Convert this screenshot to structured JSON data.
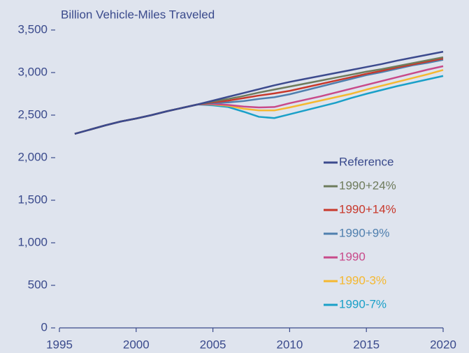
{
  "chart_data": {
    "type": "line",
    "y_axis_label": "Billion Vehicle-Miles Traveled",
    "x": [
      1996,
      1997,
      1998,
      1999,
      2000,
      2001,
      2002,
      2003,
      2004,
      2005,
      2006,
      2007,
      2008,
      2009,
      2010,
      2011,
      2012,
      2013,
      2014,
      2015,
      2016,
      2017,
      2018,
      2019,
      2020
    ],
    "series": [
      {
        "name": "Reference",
        "color": "#3c4a8e",
        "values": [
          2280,
          2330,
          2380,
          2425,
          2460,
          2500,
          2545,
          2585,
          2625,
          2670,
          2715,
          2760,
          2805,
          2850,
          2890,
          2925,
          2960,
          2995,
          3030,
          3065,
          3100,
          3140,
          3175,
          3210,
          3245
        ]
      },
      {
        "name": "1990+24%",
        "color": "#6e7b5c",
        "values": [
          2280,
          2330,
          2380,
          2425,
          2460,
          2500,
          2545,
          2585,
          2625,
          2660,
          2690,
          2725,
          2765,
          2800,
          2835,
          2870,
          2905,
          2940,
          2975,
          3010,
          3040,
          3075,
          3110,
          3145,
          3180
        ]
      },
      {
        "name": "1990+14%",
        "color": "#c8382b",
        "values": [
          2280,
          2330,
          2380,
          2425,
          2460,
          2500,
          2545,
          2585,
          2625,
          2650,
          2670,
          2700,
          2730,
          2755,
          2785,
          2825,
          2865,
          2905,
          2945,
          2985,
          3020,
          3060,
          3095,
          3130,
          3165
        ]
      },
      {
        "name": "1990+9%",
        "color": "#4f7fae",
        "values": [
          2280,
          2330,
          2380,
          2425,
          2460,
          2500,
          2545,
          2585,
          2625,
          2640,
          2650,
          2665,
          2690,
          2710,
          2745,
          2790,
          2835,
          2880,
          2925,
          2970,
          3005,
          3045,
          3085,
          3115,
          3150
        ]
      },
      {
        "name": "1990",
        "color": "#c84a8a",
        "values": [
          2280,
          2330,
          2380,
          2425,
          2460,
          2500,
          2545,
          2585,
          2625,
          2630,
          2620,
          2600,
          2590,
          2595,
          2640,
          2680,
          2720,
          2765,
          2810,
          2855,
          2900,
          2945,
          2990,
          3035,
          3075
        ]
      },
      {
        "name": "1990-3%",
        "color": "#f5b830",
        "values": [
          2280,
          2330,
          2380,
          2425,
          2460,
          2500,
          2545,
          2585,
          2625,
          2625,
          2610,
          2575,
          2555,
          2555,
          2590,
          2630,
          2670,
          2710,
          2750,
          2800,
          2845,
          2890,
          2935,
          2980,
          3030
        ]
      },
      {
        "name": "1990-7%",
        "color": "#1aa0c8",
        "values": [
          2280,
          2330,
          2380,
          2425,
          2460,
          2500,
          2545,
          2585,
          2625,
          2615,
          2595,
          2540,
          2480,
          2465,
          2510,
          2555,
          2600,
          2645,
          2700,
          2750,
          2795,
          2840,
          2880,
          2920,
          2960
        ]
      }
    ],
    "xlim": [
      1995,
      2020
    ],
    "xticks": [
      1995,
      2000,
      2005,
      2010,
      2015,
      2020
    ],
    "ylim": [
      0,
      3500
    ],
    "yticks": [
      0,
      500,
      {
        "value": 1000,
        "label": "1,000"
      },
      {
        "value": 1500,
        "label": "1,500"
      },
      {
        "value": 2000,
        "label": "2,000"
      },
      {
        "value": 2500,
        "label": "2,500"
      },
      {
        "value": 3000,
        "label": "3,000"
      },
      {
        "value": 3500,
        "label": "3,500"
      }
    ],
    "legend": "lower right"
  }
}
